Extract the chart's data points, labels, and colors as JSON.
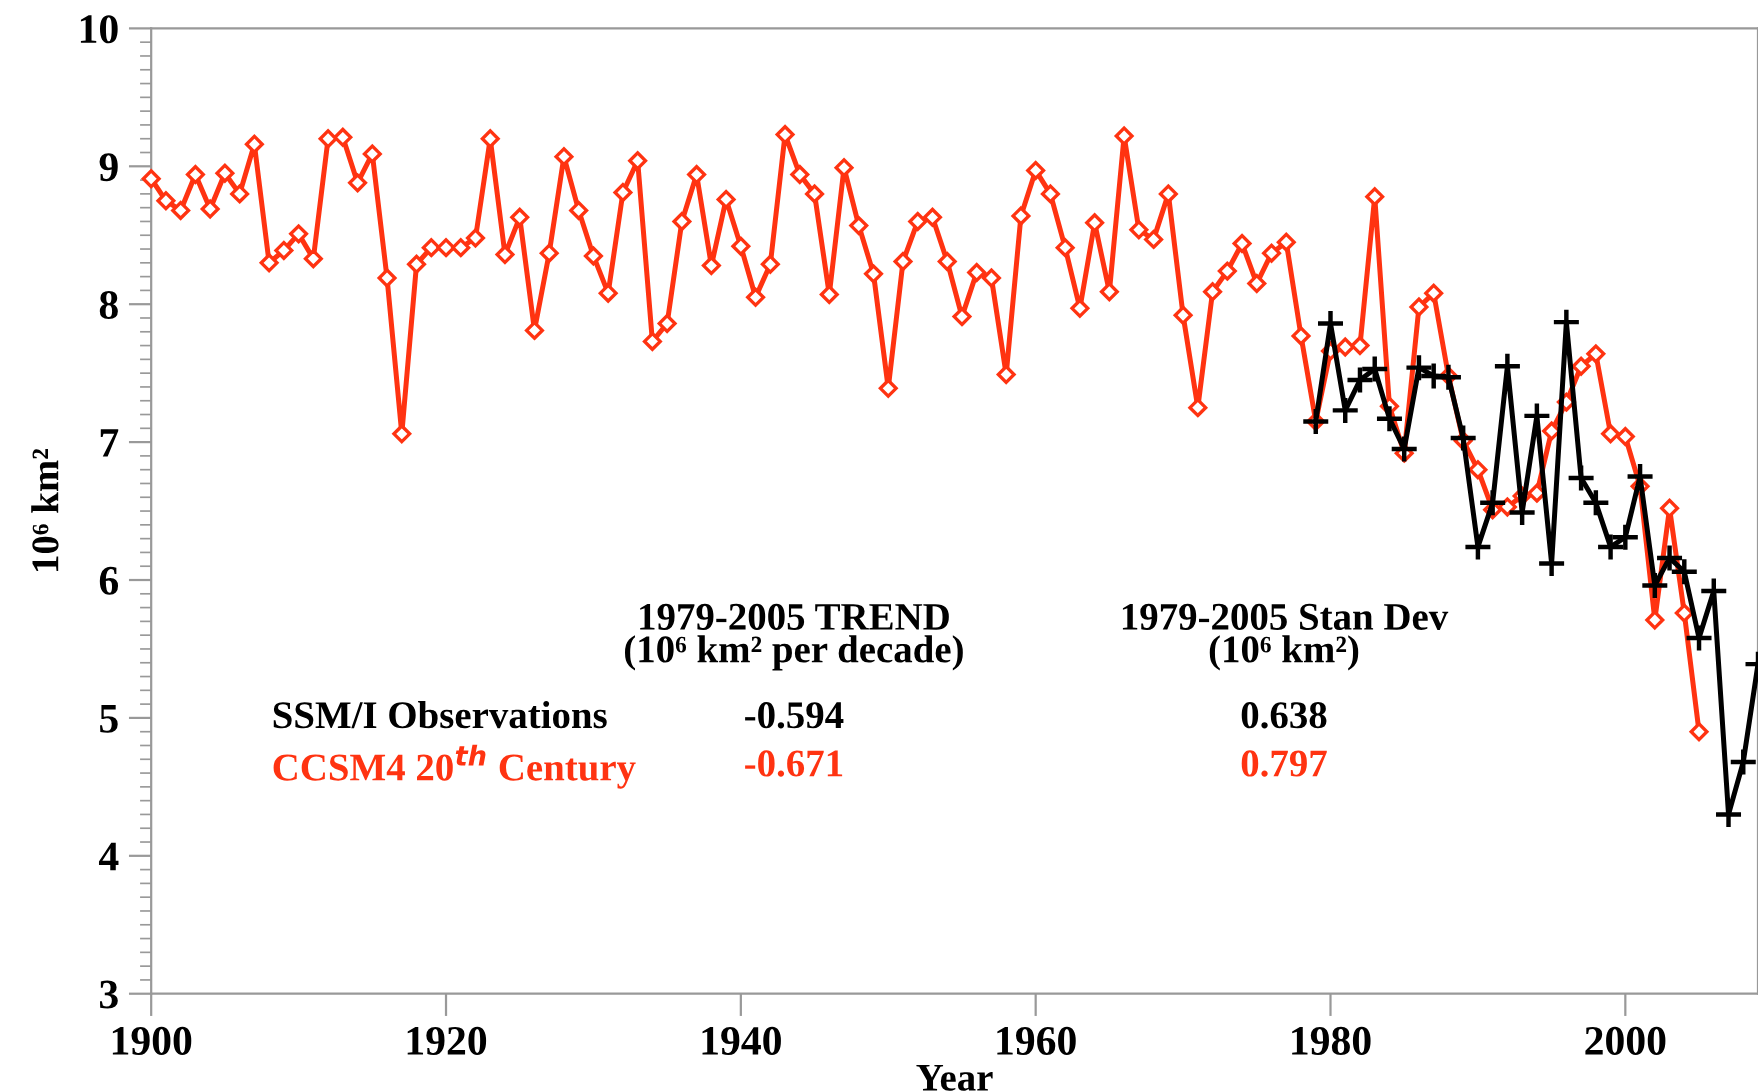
{
  "chart_data": {
    "type": "line",
    "xlabel": "Year",
    "ylabel": "10⁶ km²",
    "xlim": [
      1900,
      2009
    ],
    "xticks": [
      1900,
      1920,
      1940,
      1960,
      1980,
      2000
    ],
    "ylim": [
      3,
      10
    ],
    "yticks": [
      3,
      4,
      5,
      6,
      7,
      8,
      9,
      10
    ],
    "grid": false,
    "legend": false,
    "series": [
      {
        "name": "CCSM4 20$^{th}$ Century",
        "color": "#ff3311",
        "marker": "diamond",
        "x": [
          1900,
          1901,
          1902,
          1903,
          1904,
          1905,
          1906,
          1907,
          1908,
          1909,
          1910,
          1911,
          1912,
          1913,
          1914,
          1915,
          1916,
          1917,
          1918,
          1919,
          1920,
          1921,
          1922,
          1923,
          1924,
          1925,
          1926,
          1927,
          1928,
          1929,
          1930,
          1931,
          1932,
          1933,
          1934,
          1935,
          1936,
          1937,
          1938,
          1939,
          1940,
          1941,
          1942,
          1943,
          1944,
          1945,
          1946,
          1947,
          1948,
          1949,
          1950,
          1951,
          1952,
          1953,
          1954,
          1955,
          1956,
          1957,
          1958,
          1959,
          1960,
          1961,
          1962,
          1963,
          1964,
          1965,
          1966,
          1967,
          1968,
          1969,
          1970,
          1971,
          1972,
          1973,
          1974,
          1975,
          1976,
          1977,
          1978,
          1979,
          1980,
          1981,
          1982,
          1983,
          1984,
          1985,
          1986,
          1987,
          1988,
          1989,
          1990,
          1991,
          1992,
          1993,
          1994,
          1995,
          1996,
          1997,
          1998,
          1999,
          2000,
          2001,
          2002,
          2003,
          2004,
          2005
        ],
        "values": [
          8.91,
          8.75,
          8.68,
          8.94,
          8.69,
          8.95,
          8.8,
          9.16,
          8.3,
          8.39,
          8.51,
          8.33,
          9.2,
          9.21,
          8.88,
          9.09,
          8.19,
          7.06,
          8.29,
          8.41,
          8.41,
          8.41,
          8.48,
          9.2,
          8.36,
          8.63,
          7.81,
          8.37,
          9.07,
          8.68,
          8.35,
          8.08,
          8.81,
          9.04,
          7.73,
          7.86,
          8.6,
          8.94,
          8.28,
          8.76,
          8.42,
          8.05,
          8.29,
          9.23,
          8.94,
          8.8,
          8.07,
          8.99,
          8.57,
          8.22,
          7.39,
          8.31,
          8.6,
          8.63,
          8.31,
          7.91,
          8.23,
          8.19,
          7.49,
          8.64,
          8.97,
          8.8,
          8.41,
          7.97,
          8.59,
          8.09,
          9.22,
          8.54,
          8.47,
          8.8,
          7.92,
          7.25,
          8.09,
          8.24,
          8.44,
          8.15,
          8.37,
          8.45,
          7.77,
          7.15,
          7.66,
          7.69,
          7.7,
          8.78,
          7.26,
          6.92,
          7.98,
          8.08,
          7.48,
          7.01,
          6.8,
          6.51,
          6.53,
          6.61,
          6.63,
          7.08,
          7.29,
          7.55,
          7.64,
          7.06,
          7.04,
          6.68,
          5.71,
          6.52,
          5.76,
          4.9
        ]
      },
      {
        "name": "SSM/I Observations",
        "color": "#000000",
        "marker": "cross",
        "x": [
          1979,
          1980,
          1981,
          1982,
          1983,
          1984,
          1985,
          1986,
          1987,
          1988,
          1989,
          1990,
          1991,
          1992,
          1993,
          1994,
          1995,
          1996,
          1997,
          1998,
          1999,
          2000,
          2001,
          2002,
          2003,
          2004,
          2005,
          2006,
          2007,
          2008,
          2009
        ],
        "values": [
          7.15,
          7.86,
          7.23,
          7.45,
          7.53,
          7.17,
          6.95,
          7.54,
          7.48,
          7.47,
          7.03,
          6.24,
          6.56,
          7.55,
          6.49,
          7.19,
          6.12,
          7.87,
          6.74,
          6.56,
          6.24,
          6.31,
          6.75,
          5.96,
          6.16,
          6.06,
          5.58,
          5.92,
          4.3,
          4.68,
          5.39
        ]
      }
    ],
    "annotations": [
      "1979-2005 TREND\n(10⁶ km² per decade)",
      "1979-2005 Stan Dev\n(10⁶ km²)",
      "-0.671",
      "0.797",
      "-0.594",
      "0.638"
    ]
  }
}
